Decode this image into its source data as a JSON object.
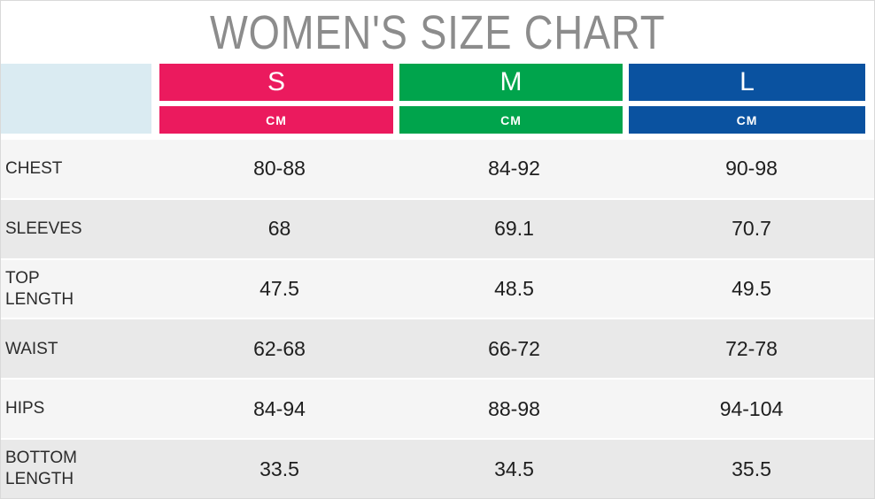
{
  "title": "WOMEN'S SIZE CHART",
  "colors": {
    "size_s": "#EB1A5E",
    "size_m": "#00A44C",
    "size_l": "#0A52A0",
    "corner": "#DAEBF2",
    "title_gray": "#8C8C8C",
    "row_light": "#F5F5F5",
    "row_dark": "#E9E9E9"
  },
  "table": {
    "columns": [
      {
        "label": "S",
        "unit": "CM"
      },
      {
        "label": "M",
        "unit": "CM"
      },
      {
        "label": "L",
        "unit": "CM"
      }
    ],
    "rows": [
      {
        "label": "CHEST",
        "values": [
          "80-88",
          "84-92",
          "90-98"
        ]
      },
      {
        "label": "SLEEVES",
        "values": [
          "68",
          "69.1",
          "70.7"
        ]
      },
      {
        "label": "TOP\nLENGTH",
        "values": [
          "47.5",
          "48.5",
          "49.5"
        ]
      },
      {
        "label": "WAIST",
        "values": [
          "62-68",
          "66-72",
          "72-78"
        ]
      },
      {
        "label": "HIPS",
        "values": [
          "84-94",
          "88-98",
          "94-104"
        ]
      },
      {
        "label": "BOTTOM\nLENGTH",
        "values": [
          "33.5",
          "34.5",
          "35.5"
        ]
      }
    ]
  },
  "chart_data": {
    "type": "table",
    "title": "WOMEN'S SIZE CHART",
    "unit": "CM",
    "columns": [
      "S",
      "M",
      "L"
    ],
    "row_headers": [
      "CHEST",
      "SLEEVES",
      "TOP LENGTH",
      "WAIST",
      "HIPS",
      "BOTTOM LENGTH"
    ],
    "rows": [
      [
        "80-88",
        "84-92",
        "90-98"
      ],
      [
        "68",
        "69.1",
        "70.7"
      ],
      [
        "47.5",
        "48.5",
        "49.5"
      ],
      [
        "62-68",
        "66-72",
        "72-78"
      ],
      [
        "84-94",
        "88-98",
        "94-104"
      ],
      [
        "33.5",
        "34.5",
        "35.5"
      ]
    ]
  }
}
